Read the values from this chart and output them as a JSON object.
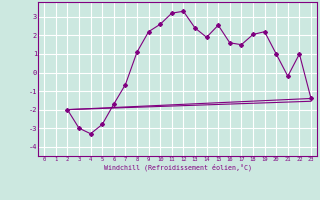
{
  "xlabel": "Windchill (Refroidissement éolien,°C)",
  "bg_color": "#cce8e0",
  "line_color": "#800080",
  "grid_color": "#ffffff",
  "xlim": [
    -0.5,
    23.5
  ],
  "ylim": [
    -4.5,
    3.8
  ],
  "yticks": [
    -4,
    -3,
    -2,
    -1,
    0,
    1,
    2,
    3
  ],
  "xticks": [
    0,
    1,
    2,
    3,
    4,
    5,
    6,
    7,
    8,
    9,
    10,
    11,
    12,
    13,
    14,
    15,
    16,
    17,
    18,
    19,
    20,
    21,
    22,
    23
  ],
  "line1_x": [
    2,
    3,
    4,
    5,
    6,
    7,
    8,
    9,
    10,
    11,
    12,
    13,
    14,
    15,
    16,
    17,
    18,
    19,
    20,
    21,
    22,
    23
  ],
  "line1_y": [
    -2.0,
    -3.0,
    -3.3,
    -2.8,
    -1.7,
    -0.65,
    1.1,
    2.2,
    2.6,
    3.2,
    3.3,
    2.4,
    1.9,
    2.55,
    1.6,
    1.5,
    2.05,
    2.2,
    1.0,
    -0.2,
    1.0,
    -1.4
  ],
  "line2_x": [
    2,
    23
  ],
  "line2_y": [
    -2.0,
    -1.4
  ],
  "line3_x": [
    2,
    23
  ],
  "line3_y": [
    -2.0,
    -1.4
  ]
}
